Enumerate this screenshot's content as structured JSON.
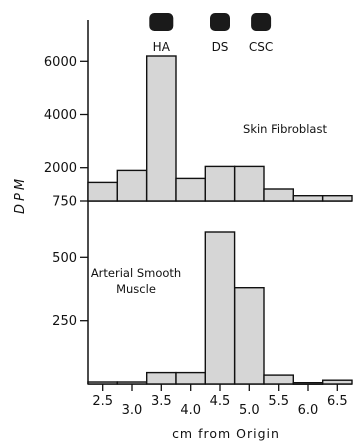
{
  "chart_data": [
    {
      "type": "bar",
      "panel": "top",
      "annotation": "Skin Fibroblast",
      "ylabel": "DPM",
      "y_tick_labels": [
        "6000",
        "4000",
        "2000",
        "750"
      ],
      "y_ticks": [
        6000,
        4000,
        2000,
        750
      ],
      "ylim": [
        750,
        7000
      ],
      "x_bins": [
        [
          2.25,
          2.75
        ],
        [
          2.75,
          3.25
        ],
        [
          3.25,
          3.75
        ],
        [
          3.75,
          4.25
        ],
        [
          4.25,
          4.75
        ],
        [
          4.75,
          5.25
        ],
        [
          5.25,
          5.75
        ],
        [
          5.75,
          6.25
        ],
        [
          6.25,
          6.75
        ]
      ],
      "values": [
        1450,
        1900,
        6200,
        1600,
        2050,
        2050,
        1200,
        950,
        950
      ],
      "spot_labels": [
        "HA",
        "DS",
        "CSC"
      ],
      "spot_positions": [
        3.5,
        4.5,
        5.2
      ]
    },
    {
      "type": "bar",
      "panel": "bottom",
      "annotation_lines": [
        "Arterial Smooth",
        "Muscle"
      ],
      "y_tick_labels": [
        "500",
        "250"
      ],
      "y_ticks": [
        500,
        250
      ],
      "ylim": [
        0,
        750
      ],
      "x_bins": [
        [
          2.25,
          2.75
        ],
        [
          2.75,
          3.25
        ],
        [
          3.25,
          3.75
        ],
        [
          3.75,
          4.25
        ],
        [
          4.25,
          4.75
        ],
        [
          4.75,
          5.25
        ],
        [
          5.25,
          5.75
        ],
        [
          5.75,
          6.25
        ],
        [
          6.25,
          6.75
        ]
      ],
      "values": [
        8,
        8,
        45,
        45,
        600,
        380,
        35,
        5,
        15
      ],
      "x_tick_labels": [
        "2.5",
        "3.0",
        "3.5",
        "4.0",
        "4.5",
        "5.0",
        "5.5",
        "6.0",
        "6.5"
      ],
      "x_ticks": [
        2.5,
        3.0,
        3.5,
        4.0,
        4.5,
        5.0,
        5.5,
        6.0,
        6.5
      ],
      "xlabel": "cm from Origin"
    }
  ]
}
